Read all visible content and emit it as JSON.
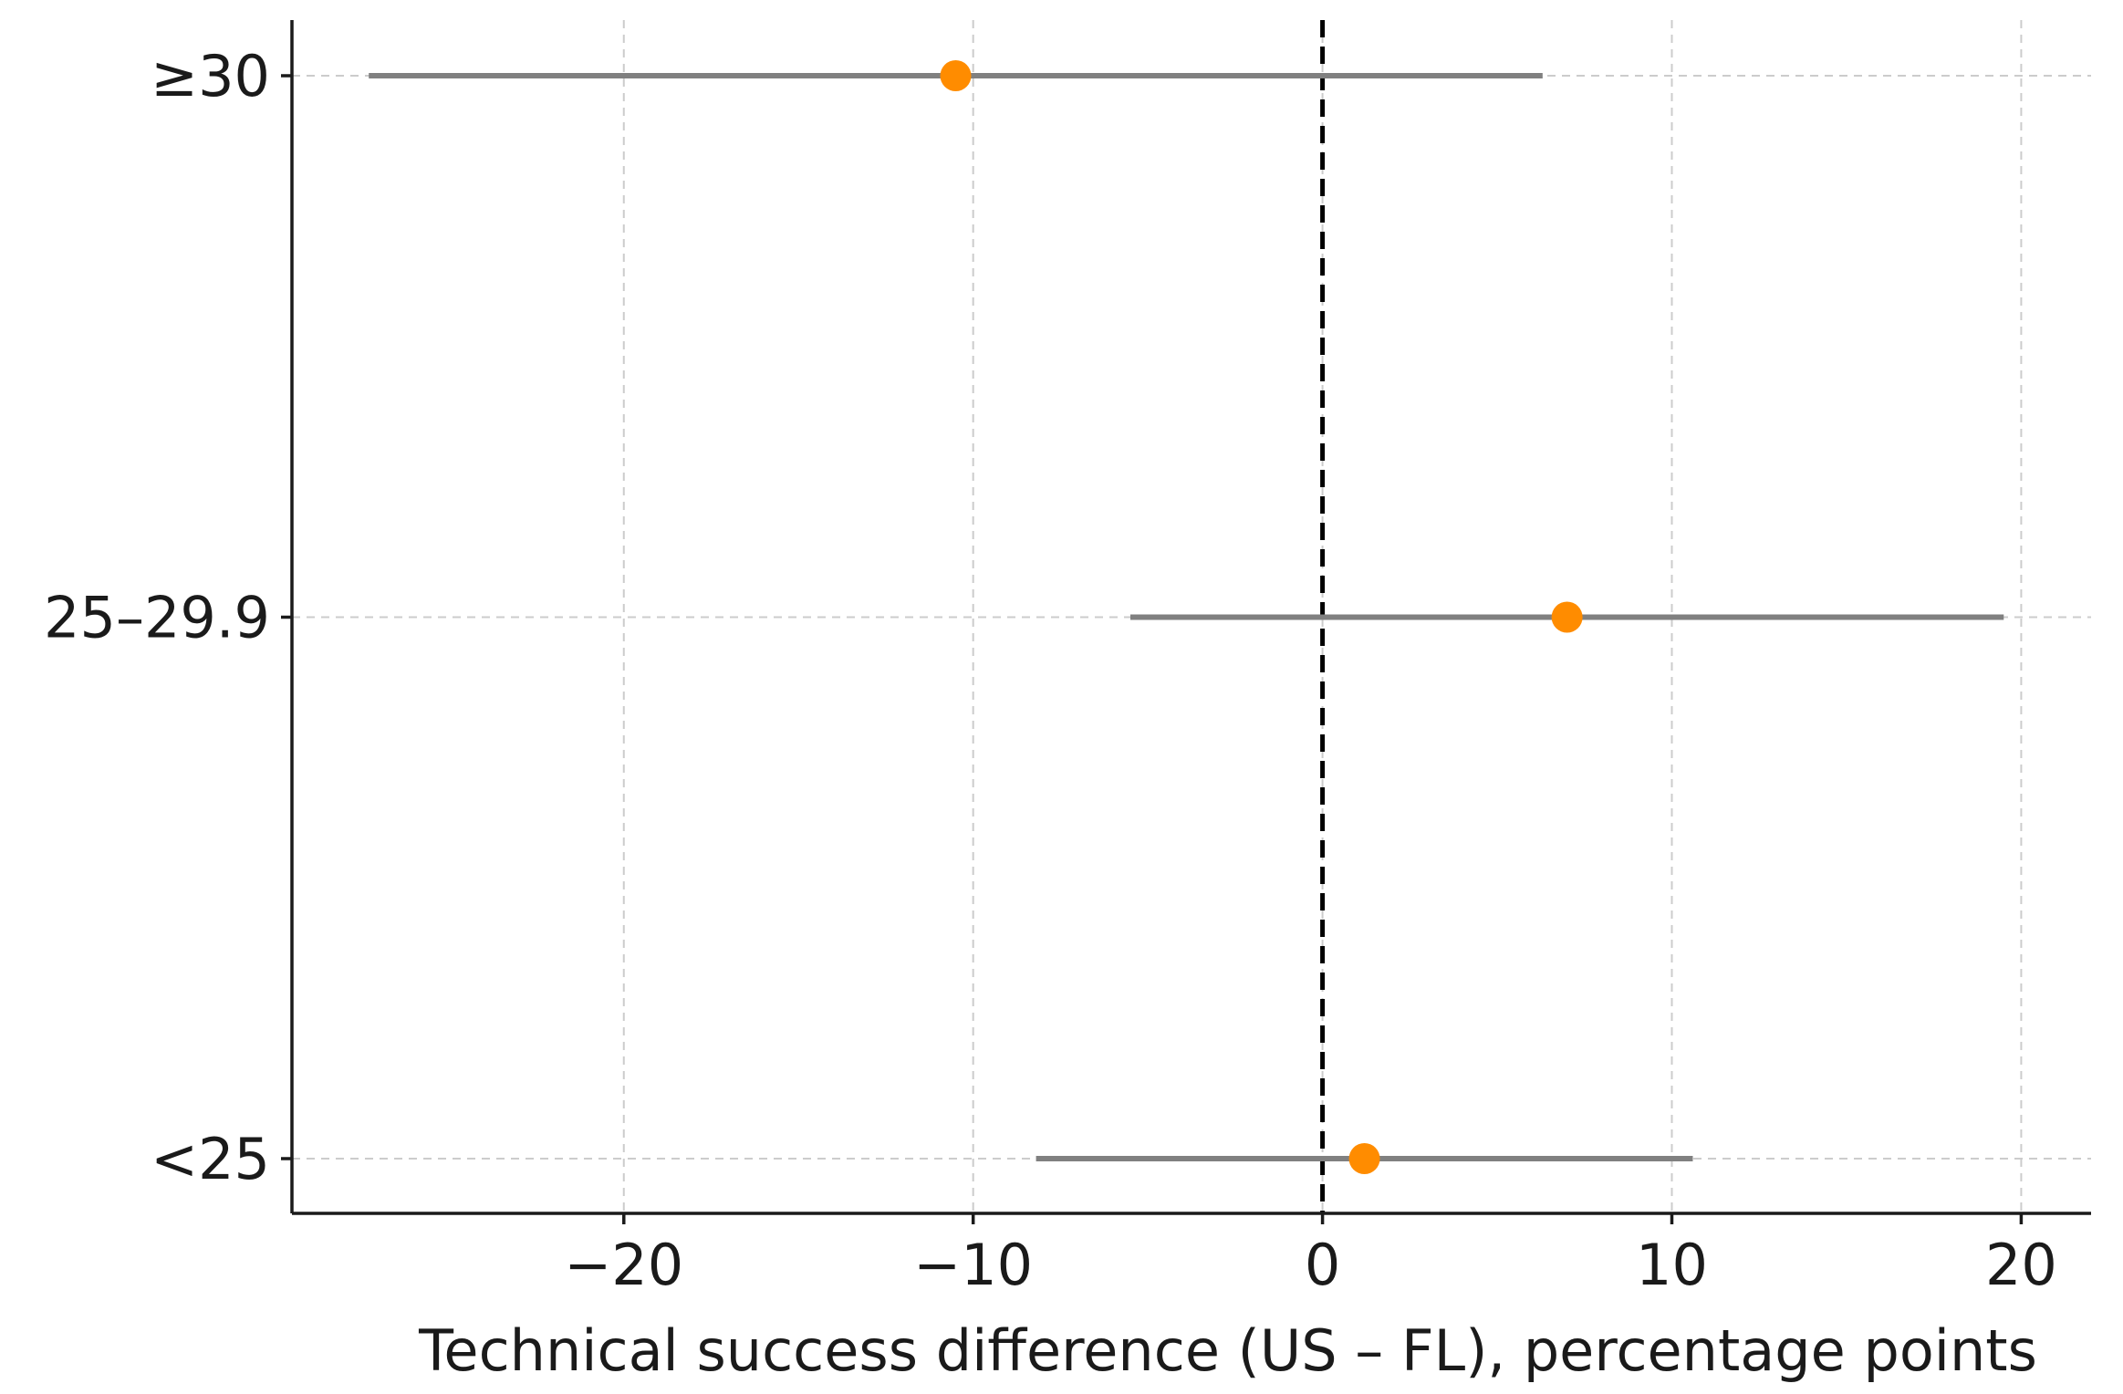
{
  "chart_data": {
    "type": "forest",
    "title": "",
    "xlabel": "Technical success difference (US – FL), percentage points",
    "ylabel": "",
    "xlim": [
      -29.5,
      22
    ],
    "xticks": [
      -20,
      -10,
      0,
      10,
      20
    ],
    "xtick_labels": [
      "−20",
      "−10",
      "0",
      "10",
      "20"
    ],
    "grid": true,
    "reference_line": {
      "x": 0,
      "style": "dashed",
      "color": "#000000"
    },
    "point_color": "#ff8c00",
    "ci_color": "#808080",
    "categories": [
      "<25",
      "25–29.9",
      "≥30"
    ],
    "estimates": [
      1.2,
      7.0,
      -10.5
    ],
    "ci_lower": [
      -8.2,
      -5.5,
      -27.3
    ],
    "ci_upper": [
      10.6,
      19.5,
      6.3
    ]
  }
}
